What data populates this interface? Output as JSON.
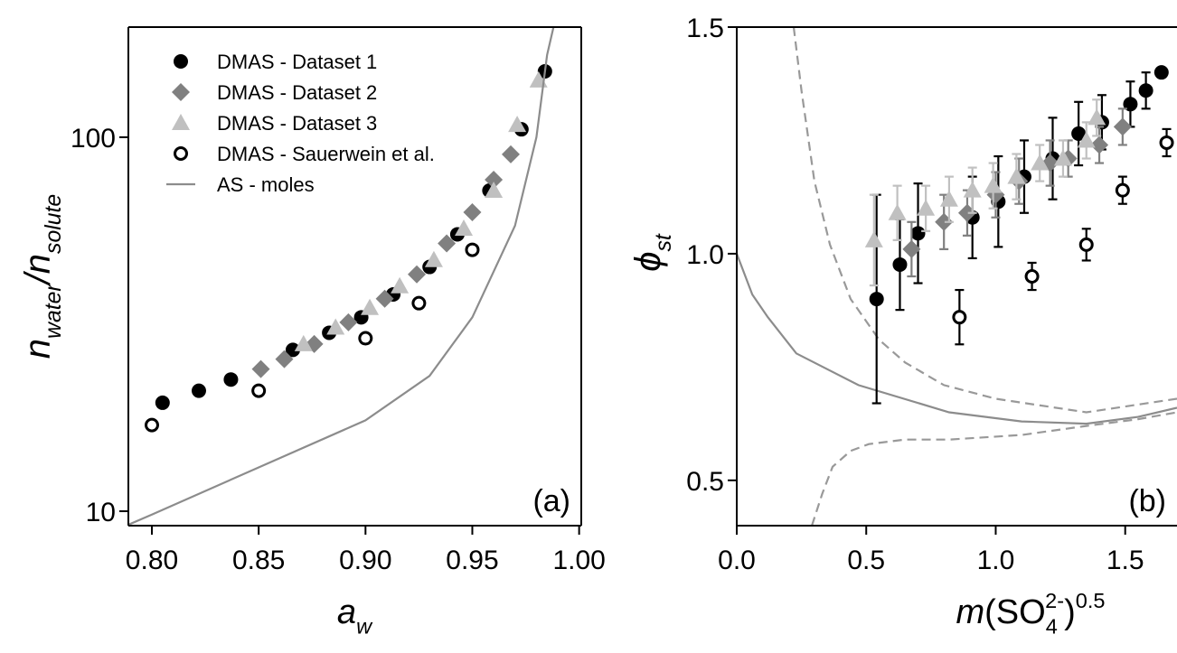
{
  "chart_data": [
    {
      "type": "scatter",
      "ylog": true,
      "xlim": [
        0.789,
        1.001
      ],
      "ylim": [
        9.15,
        197
      ],
      "xticks": [
        {
          "value": 0.8,
          "label": "0.80"
        },
        {
          "value": 0.85,
          "label": "0.85"
        },
        {
          "value": 0.9,
          "label": "0.90"
        },
        {
          "value": 0.95,
          "label": "0.95"
        },
        {
          "value": 1.0,
          "label": "1.00"
        }
      ],
      "yticks": [
        10,
        100
      ],
      "xlabel": [
        "a",
        "w"
      ],
      "ylabel": [
        "n",
        "water",
        "/",
        "n",
        "solute"
      ],
      "annotation": "(a)",
      "legend": "upper left",
      "series": [
        {
          "name": "DMAS - Dataset 1",
          "color": "#000000",
          "marker": "circle",
          "x": [
            0.805,
            0.822,
            0.837,
            0.866,
            0.883,
            0.898,
            0.913,
            0.93,
            0.943,
            0.958,
            0.973,
            0.984
          ],
          "values": [
            19.5,
            21,
            22.5,
            27,
            30,
            33,
            38,
            45,
            55,
            72,
            105,
            150
          ]
        },
        {
          "name": "DMAS - Dataset 2",
          "color": "#808080",
          "marker": "diamond",
          "x": [
            0.851,
            0.862,
            0.876,
            0.892,
            0.909,
            0.924,
            0.938,
            0.95,
            0.96,
            0.968
          ],
          "values": [
            24,
            25.5,
            28,
            32,
            37,
            43,
            52,
            63,
            77,
            90
          ]
        },
        {
          "name": "DMAS - Dataset 3",
          "color": "#c0c0c0",
          "marker": "triangle",
          "x": [
            0.871,
            0.886,
            0.902,
            0.916,
            0.932,
            0.946,
            0.96,
            0.971,
            0.981
          ],
          "values": [
            28,
            31,
            35,
            40,
            47,
            57,
            72,
            108,
            142
          ]
        },
        {
          "name": "DMAS - Sauerwein et al.",
          "color": "#000000",
          "marker": "open-circle",
          "x": [
            0.8,
            0.85,
            0.9,
            0.925,
            0.95
          ],
          "values": [
            17,
            21,
            29,
            36,
            50
          ]
        },
        {
          "name": "AS - moles",
          "color": "#8c8c8c",
          "marker": "line",
          "x": [
            0.789,
            0.8,
            0.85,
            0.9,
            0.93,
            0.95,
            0.97,
            0.98,
            0.985,
            0.988
          ],
          "values": [
            9.2,
            9.8,
            13.1,
            17.5,
            23,
            33,
            58,
            100,
            166,
            197
          ]
        }
      ]
    },
    {
      "type": "scatter",
      "ylog": false,
      "xlim": [
        0,
        1.7
      ],
      "ylim": [
        0.4,
        1.5
      ],
      "xticks": [
        {
          "value": 0,
          "label": "0.0"
        },
        0.5,
        {
          "value": 1,
          "label": "1.0"
        },
        1.5
      ],
      "yticks": [
        0.5,
        {
          "value": 1,
          "label": "1.0"
        },
        1.5
      ],
      "xlabel": [
        "m",
        "(SO",
        "4",
        "2-",
        ")",
        "0.5"
      ],
      "ylabel": [
        "ϕ",
        "st"
      ],
      "annotation": "(b)",
      "series": [
        {
          "color": "#8c8c8c",
          "marker": "line",
          "x": [
            0,
            0.06,
            0.12,
            0.23,
            0.47,
            0.82,
            1.1,
            1.35,
            1.55,
            1.7
          ],
          "values": [
            1.0,
            0.91,
            0.86,
            0.78,
            0.71,
            0.65,
            0.63,
            0.625,
            0.64,
            0.66
          ]
        },
        {
          "color": "#999999",
          "marker": "dashed-line",
          "x": [
            0.22,
            0.25,
            0.3,
            0.36,
            0.44,
            0.55,
            0.65,
            0.8,
            1.0,
            1.35,
            1.7
          ],
          "values": [
            1.5,
            1.36,
            1.16,
            1.02,
            0.9,
            0.81,
            0.76,
            0.71,
            0.68,
            0.65,
            0.68
          ]
        },
        {
          "color": "#999999",
          "marker": "dashed-line",
          "x": [
            0.29,
            0.33,
            0.37,
            0.44,
            0.51,
            0.65,
            0.82,
            1.1,
            1.35,
            1.55,
            1.7
          ],
          "values": [
            0.4,
            0.47,
            0.53,
            0.565,
            0.58,
            0.59,
            0.59,
            0.6,
            0.62,
            0.635,
            0.65
          ]
        },
        {
          "color": "#000000",
          "marker": "circle",
          "x": [
            0.54,
            0.63,
            0.7,
            0.91,
            1.01,
            1.11,
            1.22,
            1.32,
            1.41,
            1.52,
            1.58,
            1.64
          ],
          "values": [
            0.9,
            0.976,
            1.045,
            1.08,
            1.115,
            1.17,
            1.21,
            1.265,
            1.29,
            1.33,
            1.36,
            1.4
          ],
          "errors": [
            0.23,
            0.1,
            0.11,
            0.09,
            0.1,
            0.08,
            0.09,
            0.07,
            0.06,
            0.05,
            0.04,
            0.01
          ]
        },
        {
          "color": "#808080",
          "marker": "diamond",
          "x": [
            0.675,
            0.8,
            0.89,
            1.0,
            1.09,
            1.21,
            1.28,
            1.4,
            1.49
          ],
          "values": [
            1.01,
            1.07,
            1.09,
            1.13,
            1.16,
            1.2,
            1.21,
            1.24,
            1.28
          ],
          "errors": [
            0.06,
            0.06,
            0.05,
            0.05,
            0.05,
            0.05,
            0.04,
            0.04,
            0.04
          ]
        },
        {
          "color": "#c0c0c0",
          "marker": "triangle",
          "x": [
            0.53,
            0.62,
            0.73,
            0.82,
            0.91,
            0.99,
            1.08,
            1.17,
            1.26,
            1.35,
            1.39
          ],
          "values": [
            1.03,
            1.09,
            1.1,
            1.12,
            1.14,
            1.15,
            1.17,
            1.2,
            1.21,
            1.25,
            1.3
          ],
          "errors": [
            0.1,
            0.06,
            0.05,
            0.05,
            0.05,
            0.05,
            0.05,
            0.04,
            0.04,
            0.04,
            0.04
          ]
        },
        {
          "color": "#000000",
          "marker": "open-circle",
          "x": [
            0.86,
            1.14,
            1.35,
            1.49,
            1.66
          ],
          "values": [
            0.86,
            0.95,
            1.02,
            1.14,
            1.245
          ],
          "errors": [
            0.06,
            0.03,
            0.035,
            0.03,
            0.03
          ]
        }
      ]
    }
  ]
}
